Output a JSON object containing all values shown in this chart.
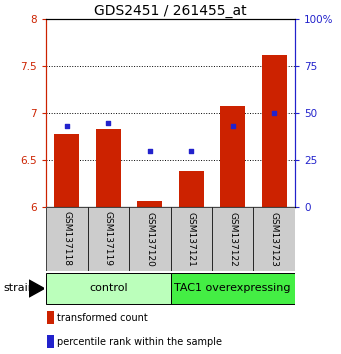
{
  "title": "GDS2451 / 261455_at",
  "samples": [
    "GSM137118",
    "GSM137119",
    "GSM137120",
    "GSM137121",
    "GSM137122",
    "GSM137123"
  ],
  "red_values": [
    6.78,
    6.83,
    6.07,
    6.38,
    7.08,
    7.62
  ],
  "blue_percentiles": [
    43,
    45,
    30,
    30,
    43,
    50
  ],
  "ylim": [
    6.0,
    8.0
  ],
  "yticks_left": [
    6.0,
    6.5,
    7.0,
    7.5,
    8.0
  ],
  "ytick_labels_left": [
    "6",
    "6.5",
    "7",
    "7.5",
    "8"
  ],
  "yticks_right": [
    0,
    25,
    50,
    75,
    100
  ],
  "ytick_labels_right": [
    "0",
    "25",
    "50",
    "75",
    "100%"
  ],
  "red_color": "#CC2200",
  "blue_color": "#2222CC",
  "bar_width": 0.6,
  "group_labels": [
    "control",
    "TAC1 overexpressing"
  ],
  "group_colors": [
    "#BBFFBB",
    "#44EE44"
  ],
  "group_split": 3,
  "strain_label": "strain",
  "legend_red": "transformed count",
  "legend_blue": "percentile rank within the sample",
  "title_fontsize": 10,
  "tick_fontsize": 7.5,
  "sample_fontsize": 6.5,
  "group_fontsize": 8,
  "legend_fontsize": 7
}
